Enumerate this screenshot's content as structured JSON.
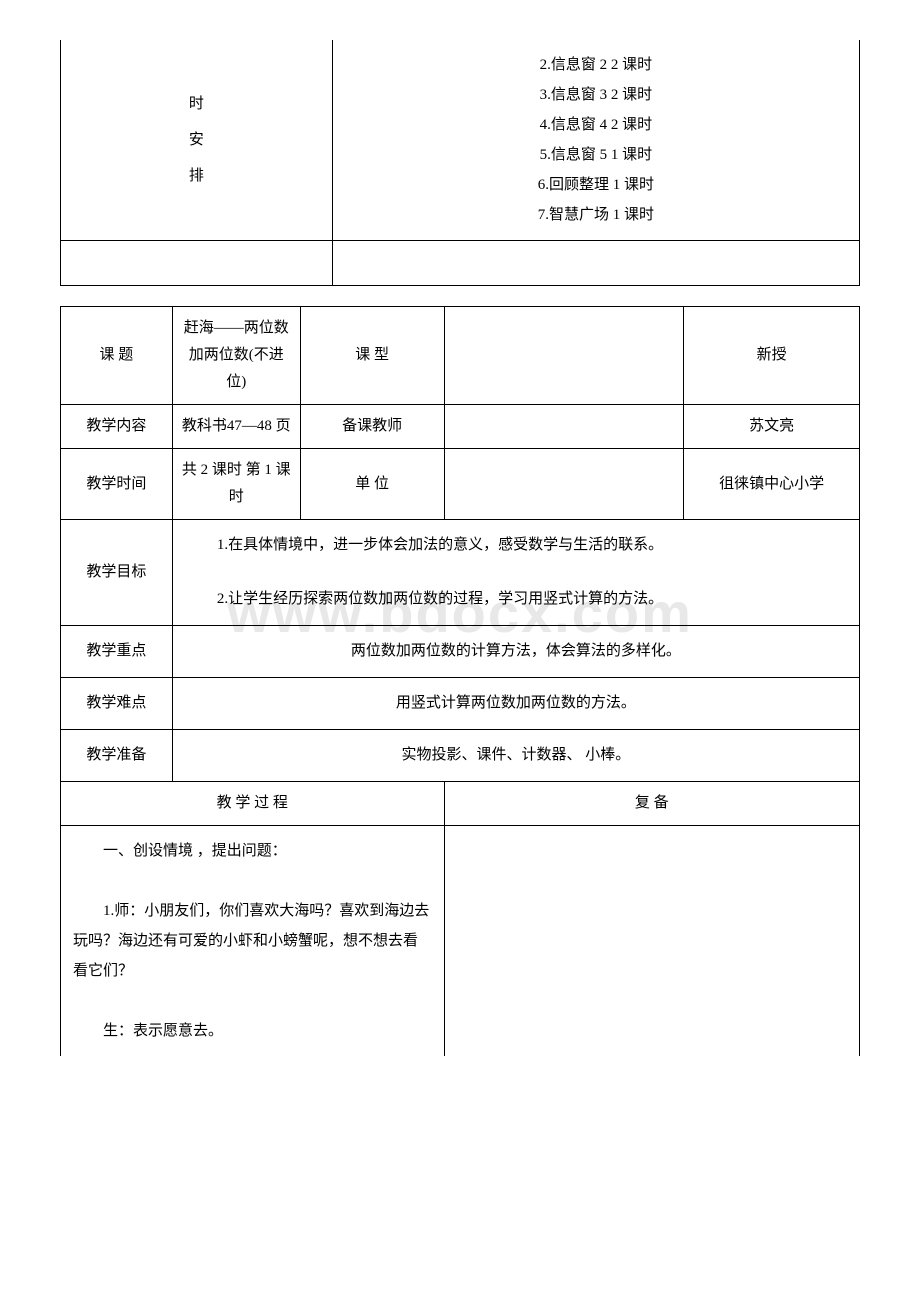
{
  "watermark": "www.bdocx.com",
  "table1": {
    "left_vertical": "时\n安\n排",
    "right_lines": [
      "2.信息窗 2 2 课时",
      "3.信息窗 3 2 课时",
      "4.信息窗 4 2 课时",
      "5.信息窗 5 1 课时",
      "6.回顾整理 1 课时",
      "7.智慧广场 1 课时"
    ]
  },
  "table2": {
    "rows": {
      "r1": {
        "label": "课 题",
        "val": "赶海——两位数加两位数(不进位)",
        "mid": "课 型",
        "last": "新授"
      },
      "r2": {
        "label": "教学内容",
        "val": "教科书47—48 页",
        "mid": "备课教师",
        "last": "苏文亮"
      },
      "r3": {
        "label": "教学时间",
        "val": "共 2 课时 第 1 课时",
        "mid": "单 位",
        "last": "徂徕镇中心小学"
      },
      "r4": {
        "label": "教学目标",
        "content": "　　1.在具体情境中，进一步体会加法的意义，感受数学与生活的联系。\n\n　　2.让学生经历探索两位数加两位数的过程，学习用竖式计算的方法。"
      },
      "r5": {
        "label": "教学重点",
        "content": "两位数加两位数的计算方法，体会算法的多样化。"
      },
      "r6": {
        "label": "教学难点",
        "content": "用竖式计算两位数加两位数的方法。"
      },
      "r7": {
        "label": "教学准备",
        "content": "实物投影、课件、计数器、 小棒。"
      },
      "r8": {
        "left": "教 学 过 程",
        "right": "复 备"
      },
      "r9": {
        "content": "　　一、创设情境 ，提出问题：\n\n　　1.师：小朋友们，你们喜欢大海吗？喜欢到海边去玩吗？海边还有可爱的小虾和小螃蟹呢，想不想去看看它们？\n\n　　生：表示愿意去。"
      }
    }
  }
}
